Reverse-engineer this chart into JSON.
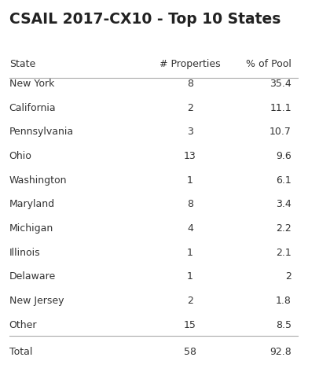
{
  "title": "CSAIL 2017-CX10 - Top 10 States",
  "columns": [
    "State",
    "# Properties",
    "% of Pool"
  ],
  "rows": [
    [
      "New York",
      "8",
      "35.4"
    ],
    [
      "California",
      "2",
      "11.1"
    ],
    [
      "Pennsylvania",
      "3",
      "10.7"
    ],
    [
      "Ohio",
      "13",
      "9.6"
    ],
    [
      "Washington",
      "1",
      "6.1"
    ],
    [
      "Maryland",
      "8",
      "3.4"
    ],
    [
      "Michigan",
      "4",
      "2.2"
    ],
    [
      "Illinois",
      "1",
      "2.1"
    ],
    [
      "Delaware",
      "1",
      "2"
    ],
    [
      "New Jersey",
      "2",
      "1.8"
    ],
    [
      "Other",
      "15",
      "8.5"
    ]
  ],
  "total_row": [
    "Total",
    "58",
    "92.8"
  ],
  "bg_color": "#ffffff",
  "text_color": "#333333",
  "title_color": "#222222",
  "line_color": "#aaaaaa"
}
